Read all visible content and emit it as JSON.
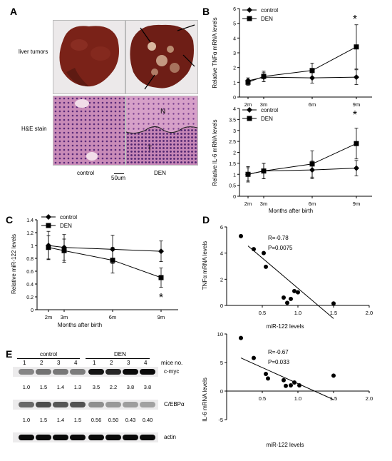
{
  "panels": {
    "A": "A",
    "B": "B",
    "C": "C",
    "D": "D",
    "E": "E"
  },
  "panelA": {
    "row_labels": [
      "liver tumors",
      "H&E stain"
    ],
    "col_labels": [
      "control",
      "DEN"
    ],
    "scale_bar": "50um",
    "he_labels": {
      "N": "N",
      "T": "T"
    }
  },
  "chart_data": [
    {
      "id": "B-top",
      "type": "line",
      "ylabel": "Relative TNFα mRNA levels",
      "x": [
        "2m",
        "3m",
        "6m",
        "9m"
      ],
      "ylim": [
        0,
        6
      ],
      "yticks": [
        0,
        1,
        2,
        3,
        4,
        5,
        6
      ],
      "series": [
        {
          "name": "control",
          "marker": "diamond",
          "values": [
            1.1,
            1.35,
            1.3,
            1.35
          ],
          "err": [
            0.2,
            0.3,
            0.35,
            0.5
          ]
        },
        {
          "name": "DEN",
          "marker": "square",
          "values": [
            1.0,
            1.4,
            1.8,
            3.4
          ],
          "err": [
            0.2,
            0.35,
            0.5,
            1.5
          ]
        }
      ],
      "annotation": "*"
    },
    {
      "id": "B-bottom",
      "type": "line",
      "ylabel": "Relative IL-6 mRNA levels",
      "xlabel": "Months after birth",
      "x": [
        "2m",
        "3m",
        "6m",
        "9m"
      ],
      "ylim": [
        0,
        4
      ],
      "yticks": [
        0.0,
        0.5,
        1.0,
        1.5,
        2.0,
        2.5,
        3.0,
        3.5,
        4.0
      ],
      "series": [
        {
          "name": "control",
          "marker": "diamond",
          "values": [
            1.0,
            1.15,
            1.2,
            1.28
          ],
          "err": [
            0.3,
            0.35,
            0.4,
            0.35
          ]
        },
        {
          "name": "DEN",
          "marker": "square",
          "values": [
            1.0,
            1.15,
            1.47,
            2.4
          ],
          "err": [
            0.35,
            0.35,
            0.6,
            0.7
          ]
        }
      ],
      "annotation": "*"
    },
    {
      "id": "C",
      "type": "line",
      "ylabel": "Relative miR-122 levels",
      "xlabel": "Months after birth",
      "x": [
        "2m",
        "3m",
        "6m",
        "9m"
      ],
      "ylim": [
        0,
        1.4
      ],
      "yticks": [
        0.0,
        0.2,
        0.4,
        0.6,
        0.8,
        1.0,
        1.2,
        1.4
      ],
      "series": [
        {
          "name": "control",
          "marker": "diamond",
          "values": [
            1.0,
            0.97,
            0.94,
            0.91
          ],
          "err": [
            0.22,
            0.2,
            0.22,
            0.16
          ]
        },
        {
          "name": "DEN",
          "marker": "square",
          "values": [
            0.97,
            0.92,
            0.77,
            0.5
          ],
          "err": [
            0.18,
            0.18,
            0.2,
            0.15
          ]
        }
      ],
      "annotation": "*"
    },
    {
      "id": "D-top",
      "type": "scatter",
      "ylabel": "TNFα mRNA levels",
      "xlabel": "miR-122 levels",
      "xlim": [
        0,
        2
      ],
      "xticks": [
        0.5,
        1.0,
        1.5,
        2.0
      ],
      "ylim": [
        0,
        6
      ],
      "yticks": [
        0,
        2,
        4,
        6
      ],
      "points": [
        [
          0.2,
          5.3
        ],
        [
          0.38,
          4.3
        ],
        [
          0.52,
          4.0
        ],
        [
          0.55,
          2.95
        ],
        [
          0.8,
          0.6
        ],
        [
          0.85,
          0.2
        ],
        [
          0.9,
          0.5
        ],
        [
          0.95,
          1.1
        ],
        [
          1.0,
          1.0
        ],
        [
          1.5,
          0.15
        ]
      ],
      "fit": [
        [
          0.3,
          4.55
        ],
        [
          1.5,
          -1.0
        ]
      ],
      "stats": [
        "R=-0.78",
        "P=0.0075"
      ]
    },
    {
      "id": "D-bottom",
      "type": "scatter",
      "ylabel": "IL-6 mRNA levels",
      "xlabel": "miR-122 levels",
      "xlim": [
        0,
        2
      ],
      "xticks": [
        0.5,
        1.0,
        1.5,
        2.0
      ],
      "ylim": [
        -5,
        10
      ],
      "yticks": [
        -5,
        0,
        5,
        10
      ],
      "points": [
        [
          0.2,
          9.3
        ],
        [
          0.38,
          5.8
        ],
        [
          0.55,
          3.0
        ],
        [
          0.58,
          2.2
        ],
        [
          0.8,
          1.9
        ],
        [
          0.83,
          0.9
        ],
        [
          0.9,
          1.0
        ],
        [
          0.95,
          1.5
        ],
        [
          1.02,
          1.0
        ],
        [
          1.5,
          2.7
        ]
      ],
      "fit": [
        [
          0.2,
          5.8
        ],
        [
          1.5,
          -1.5
        ]
      ],
      "stats": [
        "R=-0.67",
        "P=0.033"
      ]
    }
  ],
  "panelE": {
    "group_labels": [
      "control",
      "DEN"
    ],
    "lane_numbers": [
      "1",
      "2",
      "3",
      "4",
      "1",
      "2",
      "3",
      "4"
    ],
    "mice_label": "mice no.",
    "rows": [
      {
        "name": "c-myc",
        "intensity": [
          0.35,
          0.45,
          0.42,
          0.4,
          0.95,
          0.85,
          1.0,
          1.0
        ],
        "values": [
          "1.0",
          "1.5",
          "1.4",
          "1.3",
          "3.5",
          "2.2",
          "3.8",
          "3.8"
        ]
      },
      {
        "name": "C/EBPα",
        "intensity": [
          0.5,
          0.65,
          0.6,
          0.62,
          0.3,
          0.25,
          0.22,
          0.2
        ],
        "values": [
          "1.0",
          "1.5",
          "1.4",
          "1.5",
          "0.56",
          "0.50",
          "0.43",
          "0.40"
        ]
      },
      {
        "name": "actin",
        "intensity": [
          1,
          1,
          1,
          1,
          1,
          1,
          1,
          1
        ],
        "values": []
      }
    ]
  }
}
